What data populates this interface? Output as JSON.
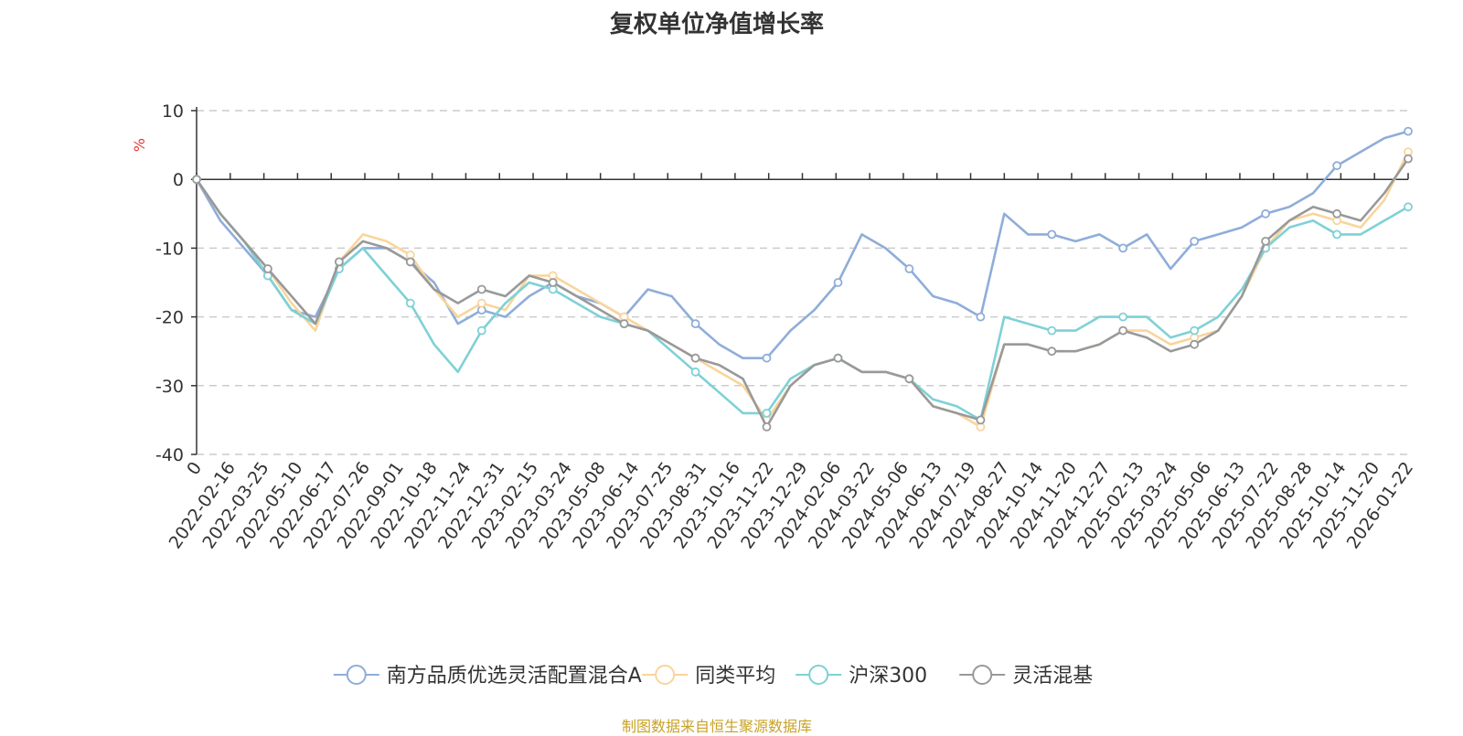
{
  "chart_data": {
    "type": "line",
    "title": "复权单位净值增长率",
    "ylabel": "%",
    "ylim": [
      -40,
      10
    ],
    "yticks": [
      10,
      0,
      -10,
      -20,
      -30,
      -40
    ],
    "xticks": [
      "0",
      "2022-02-16",
      "2022-03-25",
      "2022-05-10",
      "2022-06-17",
      "2022-07-26",
      "2022-09-01",
      "2022-10-18",
      "2022-11-24",
      "2022-12-31",
      "2023-02-15",
      "2023-03-24",
      "2023-05-08",
      "2023-06-14",
      "2023-07-25",
      "2023-08-31",
      "2023-10-16",
      "2023-11-22",
      "2023-12-29",
      "2024-02-06",
      "2024-03-22",
      "2024-05-06",
      "2024-06-13",
      "2024-07-19",
      "2024-08-27",
      "2024-10-14",
      "2024-11-20",
      "2024-12-27",
      "2025-02-13",
      "2025-03-24",
      "2025-05-06",
      "2025-06-13",
      "2025-07-22",
      "2025-08-28",
      "2025-10-14",
      "2025-11-20",
      "2026-01-22"
    ],
    "grid": "horizontal-dashed",
    "legend_position": "bottom-center",
    "series": [
      {
        "name": "南方品质优选灵活配置混合A",
        "color": "#8fadd9",
        "values": [
          0,
          -6,
          -10,
          -14,
          -19,
          -20,
          -13,
          -10,
          -10,
          -12,
          -15,
          -21,
          -19,
          -20,
          -17,
          -15,
          -17,
          -18,
          -20,
          -16,
          -17,
          -21,
          -24,
          -26,
          -26,
          -22,
          -19,
          -15,
          -8,
          -10,
          -13,
          -17,
          -18,
          -20,
          -5,
          -8,
          -8,
          -9,
          -8,
          -10,
          -8,
          -13,
          -9,
          -8,
          -7,
          -5,
          -4,
          -2,
          2,
          4,
          6,
          7
        ]
      },
      {
        "name": "同类平均",
        "color": "#f9d59b",
        "values": [
          0,
          -5,
          -9,
          -13,
          -18,
          -22,
          -12,
          -8,
          -9,
          -11,
          -16,
          -20,
          -18,
          -19,
          -14,
          -14,
          -16,
          -18,
          -20,
          -22,
          -24,
          -26,
          -28,
          -30,
          -35,
          -30,
          -27,
          -26,
          -28,
          -28,
          -29,
          -33,
          -34,
          -36,
          -24,
          -24,
          -25,
          -25,
          -24,
          -22,
          -22,
          -24,
          -23,
          -22,
          -17,
          -10,
          -6,
          -5,
          -6,
          -7,
          -3,
          4
        ]
      },
      {
        "name": "沪深300",
        "color": "#7fd1d6",
        "values": [
          0,
          -5,
          -9,
          -14,
          -19,
          -21,
          -13,
          -10,
          -14,
          -18,
          -24,
          -28,
          -22,
          -18,
          -15,
          -16,
          -18,
          -20,
          -21,
          -22,
          -25,
          -28,
          -31,
          -34,
          -34,
          -29,
          -27,
          -26,
          -28,
          -28,
          -29,
          -32,
          -33,
          -35,
          -20,
          -21,
          -22,
          -22,
          -20,
          -20,
          -20,
          -23,
          -22,
          -20,
          -16,
          -10,
          -7,
          -6,
          -8,
          -8,
          -6,
          -4
        ]
      },
      {
        "name": "灵活混基",
        "color": "#999999",
        "values": [
          0,
          -5,
          -9,
          -13,
          -17,
          -21,
          -12,
          -9,
          -10,
          -12,
          -16,
          -18,
          -16,
          -17,
          -14,
          -15,
          -17,
          -19,
          -21,
          -22,
          -24,
          -26,
          -27,
          -29,
          -36,
          -30,
          -27,
          -26,
          -28,
          -28,
          -29,
          -33,
          -34,
          -35,
          -24,
          -24,
          -25,
          -25,
          -24,
          -22,
          -23,
          -25,
          -24,
          -22,
          -17,
          -9,
          -6,
          -4,
          -5,
          -6,
          -2,
          3
        ]
      }
    ]
  },
  "source_note": "制图数据来自恒生聚源数据库"
}
